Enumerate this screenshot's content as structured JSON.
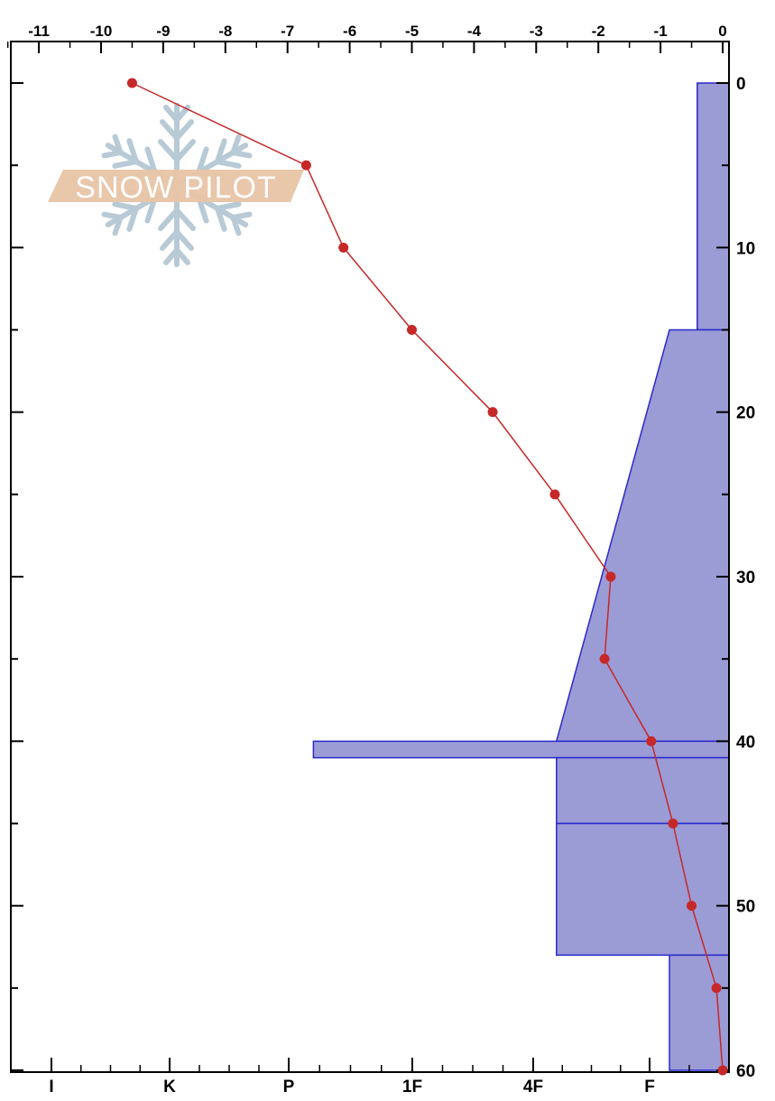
{
  "chart_data": {
    "type": "snow-profile",
    "title": "",
    "top_axis": {
      "label": "",
      "ticks": [
        "-11",
        "-10",
        "-9",
        "-8",
        "-7",
        "-6",
        "-5",
        "-4",
        "-3",
        "-2",
        "-1",
        "0"
      ],
      "range": [
        -11.75,
        0.15
      ],
      "unit": "°C"
    },
    "right_axis": {
      "label": "",
      "ticks": [
        "0",
        "10",
        "20",
        "30",
        "40",
        "50",
        "60"
      ],
      "range": [
        0,
        60
      ],
      "reversed": true
    },
    "bottom_axis": {
      "label": "",
      "ticks": [
        "I",
        "K",
        "P",
        "1F",
        "4F",
        "F"
      ]
    },
    "temperature_series": {
      "name": "",
      "color": "#c62828",
      "points": [
        {
          "depth": 0,
          "temp": -9.5
        },
        {
          "depth": 5,
          "temp": -6.7
        },
        {
          "depth": 10,
          "temp": -6.1
        },
        {
          "depth": 15,
          "temp": -5.0
        },
        {
          "depth": 20,
          "temp": -3.7
        },
        {
          "depth": 25,
          "temp": -2.7
        },
        {
          "depth": 30,
          "temp": -1.8
        },
        {
          "depth": 35,
          "temp": -1.9
        },
        {
          "depth": 40,
          "temp": -1.15
        },
        {
          "depth": 45,
          "temp": -0.8
        },
        {
          "depth": 50,
          "temp": -0.5
        },
        {
          "depth": 55,
          "temp": -0.1
        },
        {
          "depth": 60,
          "temp": 0.0
        }
      ]
    },
    "hardness_layers": {
      "fill": "#9b9bd6",
      "stroke": "#2a2acb",
      "layers": [
        {
          "top": 0,
          "bottom": 15,
          "hardness_top": 0.4,
          "hardness_bottom": 0.4
        },
        {
          "top": 15,
          "bottom": 40,
          "hardness_top": 0.75,
          "hardness_bottom": 1.8
        },
        {
          "top": 40,
          "bottom": 41,
          "hardness_top": 3.8,
          "hardness_bottom": 3.8
        },
        {
          "top": 41,
          "bottom": 45,
          "hardness_top": 1.8,
          "hardness_bottom": 1.8
        },
        {
          "top": 45,
          "bottom": 53,
          "hardness_top": 1.8,
          "hardness_bottom": 1.8
        },
        {
          "top": 53,
          "bottom": 60,
          "hardness_top": 0.75,
          "hardness_bottom": 0.75
        }
      ]
    },
    "watermark": {
      "text": "SNOW PILOT"
    }
  }
}
